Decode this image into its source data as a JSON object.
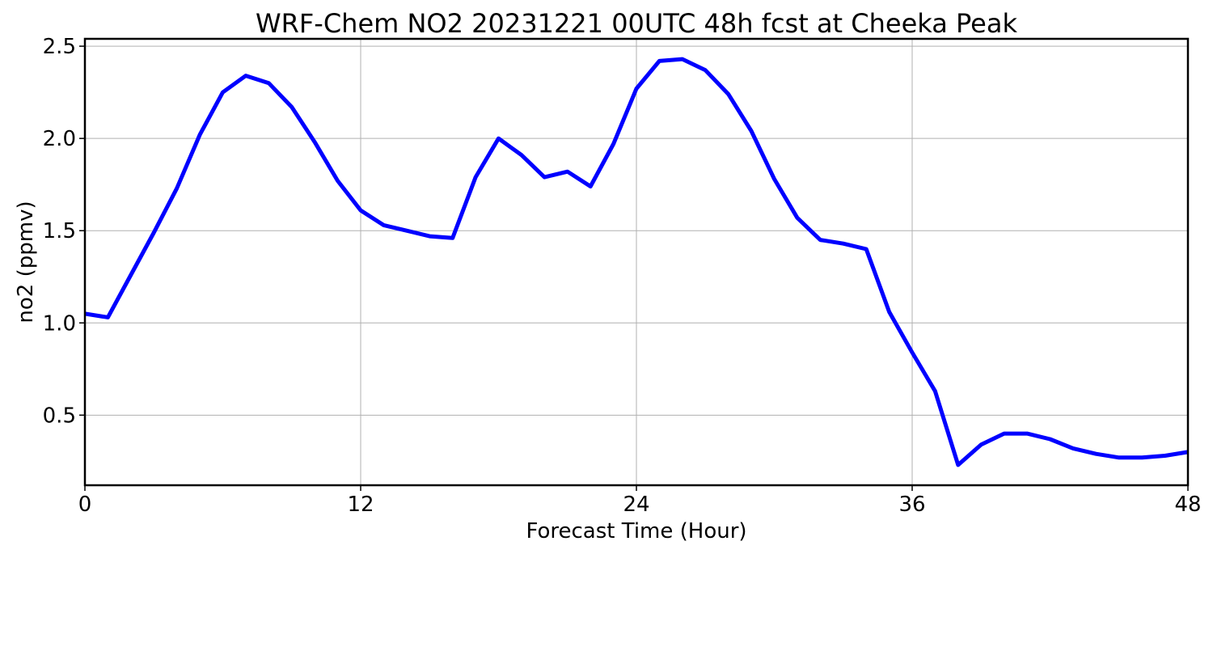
{
  "chart_data": {
    "type": "line",
    "title": "WRF-Chem NO2  20231221 00UTC 48h fcst at Cheeka Peak",
    "xlabel": "Forecast Time (Hour)",
    "ylabel": "no2  (ppmv)",
    "xlim": [
      0,
      48
    ],
    "ylim": [
      0.12,
      2.54
    ],
    "xticks": [
      0,
      12,
      24,
      36,
      48
    ],
    "xtick_labels": [
      "0",
      "12",
      "24",
      "36",
      "48"
    ],
    "yticks": [
      0.5,
      1.0,
      1.5,
      2.0,
      2.5
    ],
    "ytick_labels": [
      "0.5",
      "1.0",
      "1.5",
      "2.0",
      "2.5"
    ],
    "grid": true,
    "line_color": "#0000ff",
    "x": [
      0,
      1,
      2,
      3,
      4,
      5,
      6,
      7,
      8,
      9,
      10,
      11,
      12,
      13,
      14,
      15,
      16,
      17,
      18,
      19,
      20,
      21,
      22,
      23,
      24,
      25,
      26,
      27,
      28,
      29,
      30,
      31,
      32,
      33,
      34,
      35,
      36,
      37,
      38,
      39,
      40,
      41,
      42,
      43,
      44,
      45,
      46,
      47,
      48
    ],
    "y": [
      1.05,
      1.03,
      1.26,
      1.49,
      1.73,
      2.02,
      2.25,
      2.34,
      2.3,
      2.17,
      1.98,
      1.77,
      1.61,
      1.53,
      1.5,
      1.47,
      1.46,
      1.79,
      2.0,
      1.91,
      1.79,
      1.82,
      1.74,
      1.97,
      2.27,
      2.42,
      2.43,
      2.37,
      2.24,
      2.04,
      1.78,
      1.57,
      1.45,
      1.43,
      1.4,
      1.06,
      0.84,
      0.63,
      0.23,
      0.34,
      0.4,
      0.4,
      0.37,
      0.32,
      0.29,
      0.27,
      0.27,
      0.28,
      0.3
    ]
  }
}
